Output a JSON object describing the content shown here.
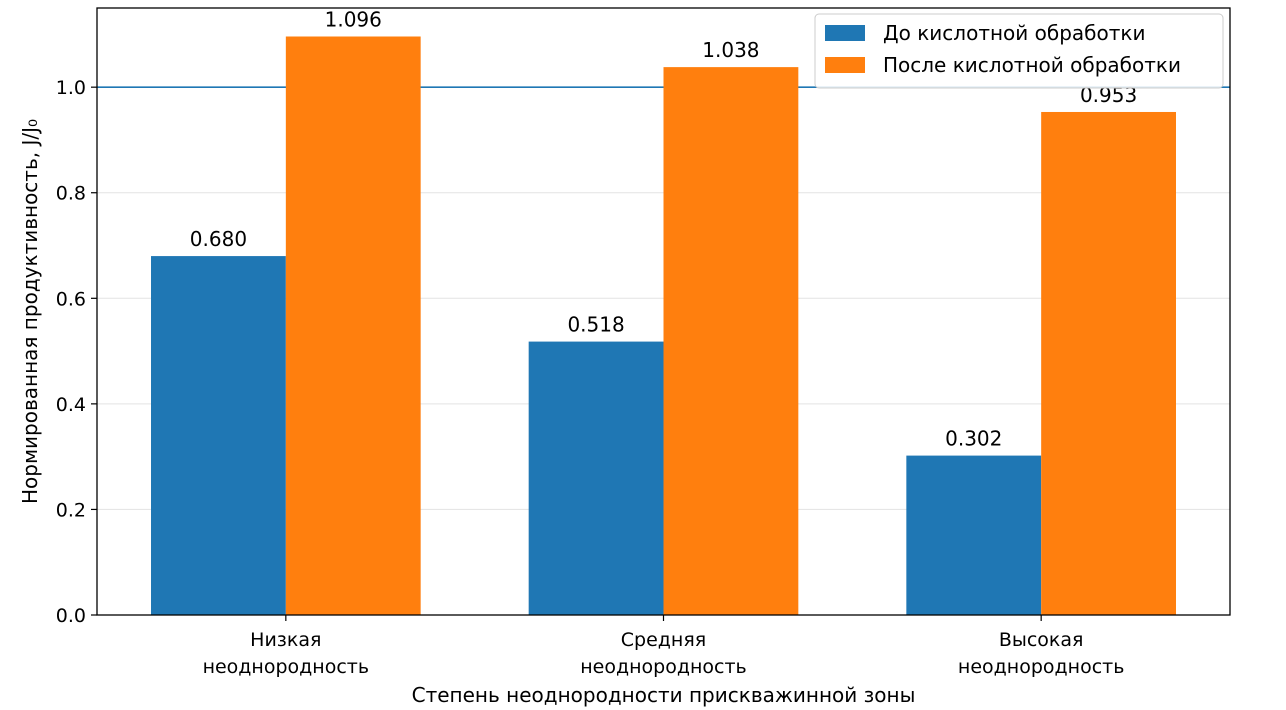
{
  "chart_data": {
    "type": "bar",
    "categories": [
      [
        "Низкая",
        "неоднородность"
      ],
      [
        "Средняя",
        "неоднородность"
      ],
      [
        "Высокая",
        "неоднородность"
      ]
    ],
    "series": [
      {
        "name": "До кислотной обработки",
        "values": [
          0.68,
          0.518,
          0.302
        ],
        "labels": [
          "0.680",
          "0.518",
          "0.302"
        ],
        "color": "#1f77b4"
      },
      {
        "name": "После кислотной обработки",
        "values": [
          1.096,
          1.038,
          0.953
        ],
        "labels": [
          "1.096",
          "1.038",
          "0.953"
        ],
        "color": "#ff7f0e"
      }
    ],
    "xlabel": "Степень неоднородности прискважинной зоны",
    "ylabel": "Нормированная продуктивность, J/J₀",
    "ylim": [
      0,
      1.15
    ],
    "yticks": [
      0.0,
      0.2,
      0.4,
      0.6,
      0.8,
      1.0
    ],
    "ytick_labels": [
      "0.0",
      "0.2",
      "0.4",
      "0.6",
      "0.8",
      "1.0"
    ],
    "reference_line": {
      "y": 1.0,
      "color": "#1f77b4"
    },
    "grid": "y",
    "legend_position": "top-right"
  }
}
